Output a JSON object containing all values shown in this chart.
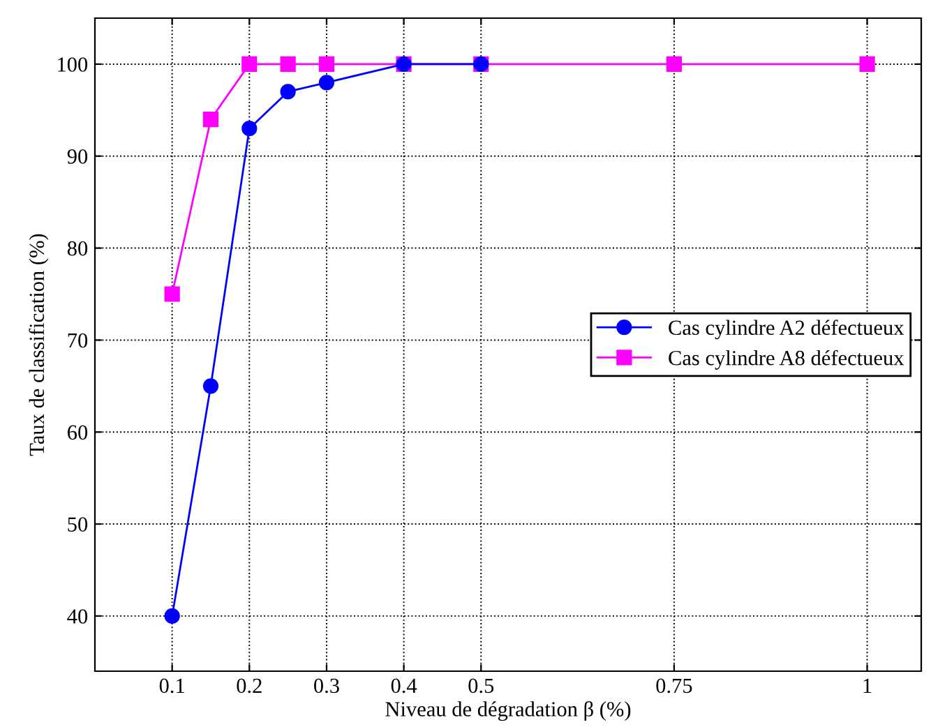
{
  "chart_data": {
    "type": "line",
    "xlabel": "Niveau de dégradation β (%)",
    "ylabel": "Taux de classification (%)",
    "x": [
      0.1,
      0.15,
      0.2,
      0.25,
      0.3,
      0.4,
      0.5,
      0.75,
      1
    ],
    "series": [
      {
        "name": "Cas cylindre A2 défectueux",
        "color": "#0000ff",
        "marker": "circle",
        "values": [
          40,
          65,
          93,
          97,
          98,
          100,
          100,
          null,
          null
        ]
      },
      {
        "name": "Cas cylindre A8 défectueux",
        "color": "#ff00ff",
        "marker": "square",
        "values": [
          75,
          94,
          100,
          100,
          100,
          100,
          100,
          100,
          100
        ]
      }
    ],
    "xlim": [
      0.0,
      1.07
    ],
    "xticks": [
      0.1,
      0.2,
      0.3,
      0.4,
      0.5,
      0.75,
      1
    ],
    "ylim": [
      34,
      105
    ],
    "yticks": [
      40,
      50,
      60,
      70,
      80,
      90,
      100
    ],
    "grid": true,
    "legend": "right",
    "line_style": "solid"
  }
}
